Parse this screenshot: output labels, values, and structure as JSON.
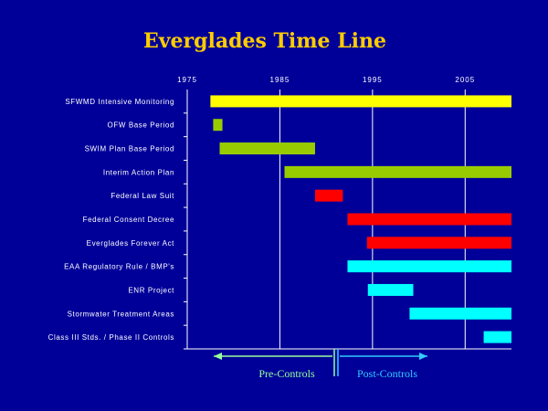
{
  "chart_data": {
    "type": "bar",
    "title": "Everglades Time Line",
    "xlim": [
      1975,
      2010
    ],
    "xticks": [
      1975,
      1985,
      1995,
      2005
    ],
    "grid": true,
    "tasks": [
      {
        "label": "SFWMD Intensive Monitoring",
        "start": 1977.5,
        "end": 2010,
        "color": "#FFFF00"
      },
      {
        "label": "OFW Base Period",
        "start": 1977.8,
        "end": 1978.8,
        "color": "#99CC00"
      },
      {
        "label": "SWIM Plan Base Period",
        "start": 1978.5,
        "end": 1988.8,
        "color": "#99CC00"
      },
      {
        "label": "Interim Action Plan",
        "start": 1985.5,
        "end": 2010,
        "color": "#99CC00"
      },
      {
        "label": "Federal Law Suit",
        "start": 1988.8,
        "end": 1991.8,
        "color": "#FF0000"
      },
      {
        "label": "Federal Consent Decree",
        "start": 1992.3,
        "end": 2010,
        "color": "#FF0000"
      },
      {
        "label": "Everglades Forever Act",
        "start": 1994.4,
        "end": 2010,
        "color": "#FF0000"
      },
      {
        "label": "EAA Regulatory Rule / BMP's",
        "start": 1992.3,
        "end": 2010,
        "color": "#00FFFF"
      },
      {
        "label": "ENR Project",
        "start": 1994.5,
        "end": 1999.4,
        "color": "#00FFFF"
      },
      {
        "label": "Stormwater Treatment Areas",
        "start": 1999,
        "end": 2010,
        "color": "#00FFFF"
      },
      {
        "label": "Class III Stds. / Phase II Controls",
        "start": 2007,
        "end": 2010,
        "color": "#00FFFF"
      }
    ],
    "annotations": [
      {
        "label": "Pre-Controls",
        "color": "#99FF99"
      },
      {
        "label": "Post-Controls",
        "color": "#33CCFF"
      }
    ]
  }
}
